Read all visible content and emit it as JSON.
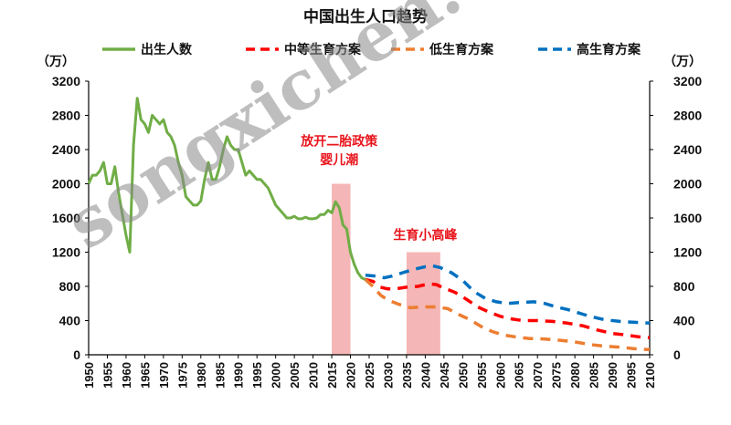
{
  "chart_data": {
    "type": "line",
    "title": "中国出生人口趋势",
    "y_unit_left": "（万）",
    "y_unit_right": "（万）",
    "ylim": [
      0,
      3200
    ],
    "y_ticks": [
      0,
      400,
      800,
      1200,
      1600,
      2000,
      2400,
      2800,
      3200
    ],
    "xlim": [
      1950,
      2100
    ],
    "x_ticks": [
      1950,
      1955,
      1960,
      1965,
      1970,
      1975,
      1980,
      1985,
      1990,
      1995,
      2000,
      2005,
      2010,
      2015,
      2020,
      2025,
      2030,
      2035,
      2040,
      2045,
      2050,
      2055,
      2060,
      2065,
      2070,
      2075,
      2080,
      2085,
      2090,
      2095,
      2100
    ],
    "legend_position": "top",
    "series": [
      {
        "name": "出生人数",
        "style": "solid",
        "color": "#70ad47",
        "points": [
          [
            1950,
            2000
          ],
          [
            1951,
            2100
          ],
          [
            1952,
            2100
          ],
          [
            1953,
            2150
          ],
          [
            1954,
            2250
          ],
          [
            1955,
            2000
          ],
          [
            1956,
            2000
          ],
          [
            1957,
            2200
          ],
          [
            1958,
            1900
          ],
          [
            1959,
            1650
          ],
          [
            1960,
            1400
          ],
          [
            1961,
            1200
          ],
          [
            1962,
            2450
          ],
          [
            1963,
            3000
          ],
          [
            1964,
            2750
          ],
          [
            1965,
            2700
          ],
          [
            1966,
            2600
          ],
          [
            1967,
            2800
          ],
          [
            1968,
            2750
          ],
          [
            1969,
            2700
          ],
          [
            1970,
            2750
          ],
          [
            1971,
            2600
          ],
          [
            1972,
            2550
          ],
          [
            1973,
            2450
          ],
          [
            1974,
            2250
          ],
          [
            1975,
            2100
          ],
          [
            1976,
            1850
          ],
          [
            1977,
            1800
          ],
          [
            1978,
            1750
          ],
          [
            1979,
            1750
          ],
          [
            1980,
            1800
          ],
          [
            1981,
            2050
          ],
          [
            1982,
            2250
          ],
          [
            1983,
            2050
          ],
          [
            1984,
            2050
          ],
          [
            1985,
            2200
          ],
          [
            1986,
            2400
          ],
          [
            1987,
            2550
          ],
          [
            1988,
            2450
          ],
          [
            1989,
            2400
          ],
          [
            1990,
            2400
          ],
          [
            1991,
            2250
          ],
          [
            1992,
            2100
          ],
          [
            1993,
            2150
          ],
          [
            1994,
            2100
          ],
          [
            1995,
            2050
          ],
          [
            1996,
            2050
          ],
          [
            1997,
            2000
          ],
          [
            1998,
            1950
          ],
          [
            1999,
            1850
          ],
          [
            2000,
            1750
          ],
          [
            2001,
            1700
          ],
          [
            2002,
            1650
          ],
          [
            2003,
            1600
          ],
          [
            2004,
            1600
          ],
          [
            2005,
            1620
          ],
          [
            2006,
            1590
          ],
          [
            2007,
            1590
          ],
          [
            2008,
            1610
          ],
          [
            2009,
            1590
          ],
          [
            2010,
            1590
          ],
          [
            2011,
            1600
          ],
          [
            2012,
            1640
          ],
          [
            2013,
            1640
          ],
          [
            2014,
            1690
          ],
          [
            2015,
            1660
          ],
          [
            2016,
            1790
          ],
          [
            2017,
            1720
          ],
          [
            2018,
            1520
          ],
          [
            2019,
            1470
          ],
          [
            2020,
            1200
          ],
          [
            2021,
            1060
          ],
          [
            2022,
            960
          ],
          [
            2023,
            900
          ],
          [
            2024,
            880
          ]
        ]
      },
      {
        "name": "中等生育方案",
        "style": "dashed",
        "color": "#ff0000",
        "points": [
          [
            2024,
            880
          ],
          [
            2026,
            860
          ],
          [
            2028,
            790
          ],
          [
            2030,
            770
          ],
          [
            2032,
            770
          ],
          [
            2035,
            790
          ],
          [
            2038,
            800
          ],
          [
            2041,
            830
          ],
          [
            2043,
            820
          ],
          [
            2045,
            780
          ],
          [
            2048,
            730
          ],
          [
            2051,
            650
          ],
          [
            2054,
            560
          ],
          [
            2057,
            500
          ],
          [
            2060,
            450
          ],
          [
            2063,
            420
          ],
          [
            2066,
            400
          ],
          [
            2070,
            400
          ],
          [
            2074,
            390
          ],
          [
            2078,
            370
          ],
          [
            2082,
            340
          ],
          [
            2086,
            290
          ],
          [
            2090,
            250
          ],
          [
            2094,
            230
          ],
          [
            2097,
            210
          ],
          [
            2100,
            200
          ]
        ]
      },
      {
        "name": "低生育方案",
        "style": "dashed",
        "color": "#ed7d31",
        "points": [
          [
            2024,
            880
          ],
          [
            2026,
            800
          ],
          [
            2028,
            700
          ],
          [
            2030,
            640
          ],
          [
            2033,
            590
          ],
          [
            2036,
            550
          ],
          [
            2040,
            560
          ],
          [
            2043,
            560
          ],
          [
            2046,
            540
          ],
          [
            2049,
            470
          ],
          [
            2052,
            410
          ],
          [
            2055,
            330
          ],
          [
            2058,
            270
          ],
          [
            2061,
            230
          ],
          [
            2064,
            210
          ],
          [
            2068,
            190
          ],
          [
            2072,
            185
          ],
          [
            2076,
            170
          ],
          [
            2080,
            150
          ],
          [
            2084,
            120
          ],
          [
            2088,
            100
          ],
          [
            2092,
            90
          ],
          [
            2096,
            70
          ],
          [
            2100,
            60
          ]
        ]
      },
      {
        "name": "高生育方案",
        "style": "dashed",
        "color": "#0070c0",
        "points": [
          [
            2024,
            930
          ],
          [
            2027,
            920
          ],
          [
            2029,
            900
          ],
          [
            2031,
            920
          ],
          [
            2034,
            960
          ],
          [
            2037,
            1000
          ],
          [
            2040,
            1030
          ],
          [
            2042,
            1040
          ],
          [
            2044,
            1020
          ],
          [
            2047,
            960
          ],
          [
            2050,
            870
          ],
          [
            2053,
            740
          ],
          [
            2056,
            660
          ],
          [
            2059,
            620
          ],
          [
            2062,
            600
          ],
          [
            2065,
            610
          ],
          [
            2069,
            620
          ],
          [
            2072,
            600
          ],
          [
            2075,
            560
          ],
          [
            2078,
            530
          ],
          [
            2081,
            490
          ],
          [
            2084,
            450
          ],
          [
            2088,
            410
          ],
          [
            2092,
            390
          ],
          [
            2096,
            380
          ],
          [
            2100,
            370
          ]
        ]
      }
    ],
    "highlight_bands": [
      {
        "x_start": 2015,
        "x_end": 2020,
        "y_top": 2000,
        "color": "#f4b6b6"
      },
      {
        "x_start": 2035,
        "x_end": 2044,
        "y_top": 1200,
        "color": "#f4b6b6"
      }
    ],
    "annotations": [
      {
        "lines": [
          "放开二胎政策",
          "婴儿潮"
        ],
        "x": 2017,
        "y": [
          2450,
          2230
        ]
      },
      {
        "lines": [
          "生育小高峰"
        ],
        "x": 2040,
        "y": [
          1350
        ]
      }
    ]
  },
  "watermark": "songxichen.c"
}
